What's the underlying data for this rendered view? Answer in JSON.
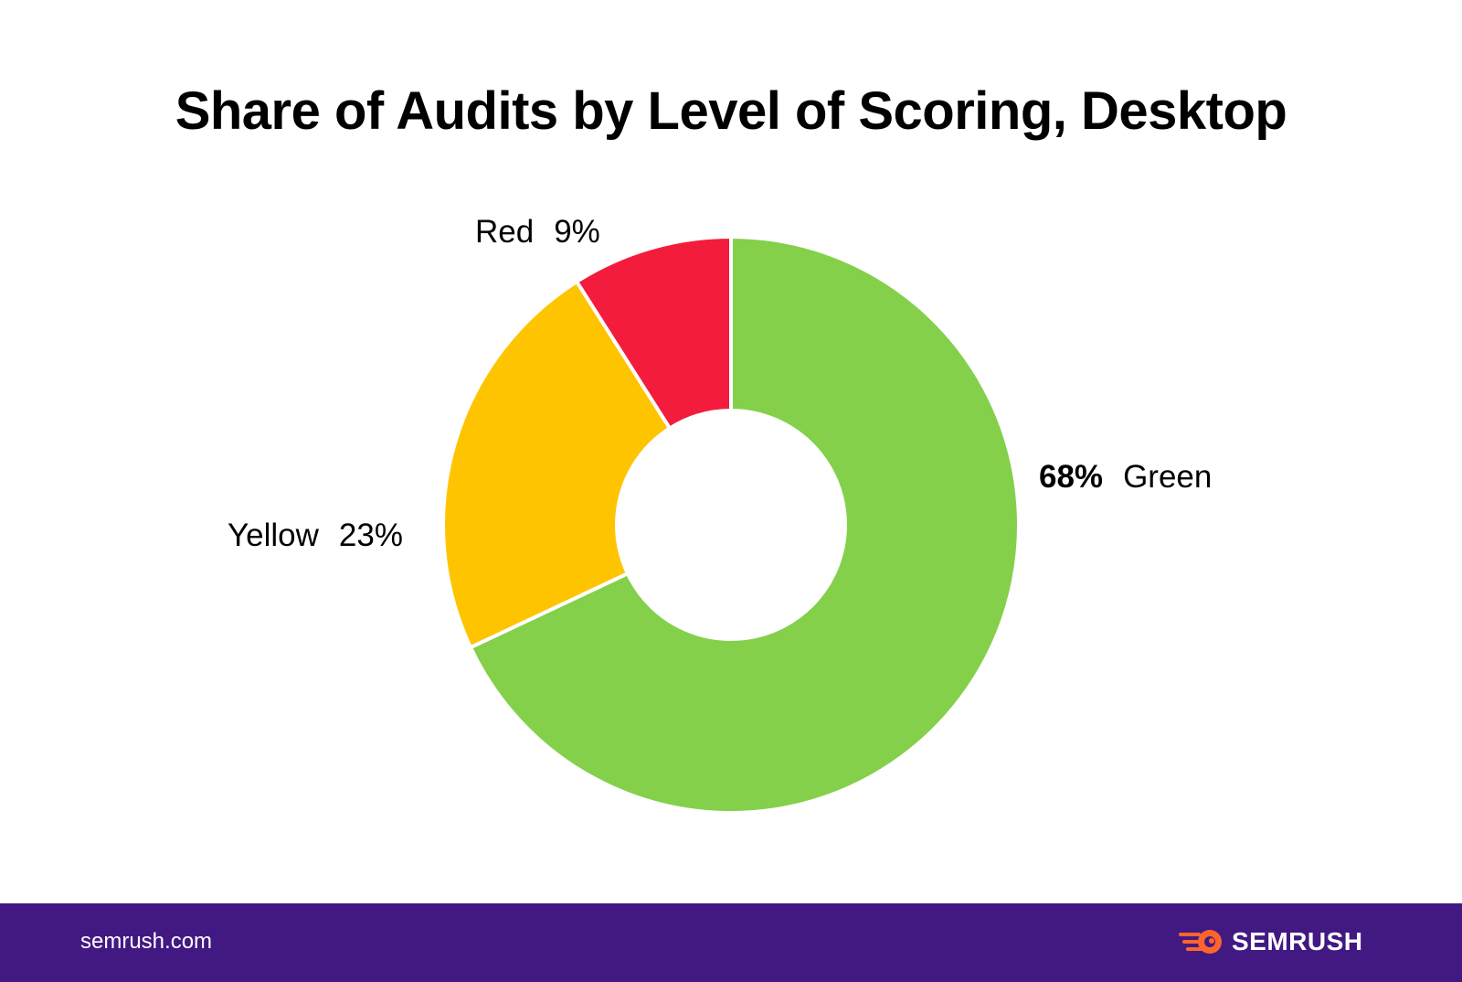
{
  "chart_data": {
    "type": "pie",
    "title": "Share of Audits by Level of Scoring, Desktop",
    "slices": [
      {
        "label": "Green",
        "value": 68,
        "display": "68%",
        "color": "#84D04A"
      },
      {
        "label": "Yellow",
        "value": 23,
        "display": "23%",
        "color": "#FFC400"
      },
      {
        "label": "Red",
        "value": 9,
        "display": "9%",
        "color": "#F41C3C"
      }
    ],
    "donut": true
  },
  "footer": {
    "url": "semrush.com",
    "brand": "SEMRUSH",
    "background": "#421983",
    "logo_color": "#FF642D",
    "logo_icon": "semrush-fireball-icon"
  }
}
